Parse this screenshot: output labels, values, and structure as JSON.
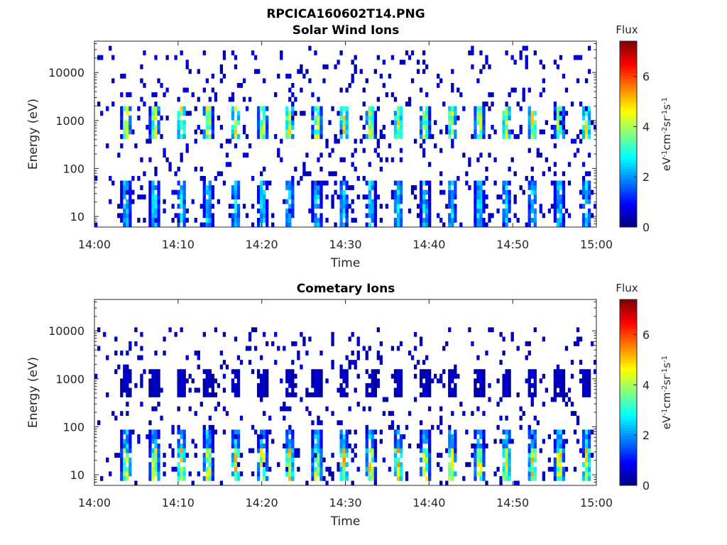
{
  "figure": {
    "title": "RPCICA160602T14.PNG"
  },
  "colorbar": {
    "label": "Flux",
    "unit_text": "eV",
    "unit_sup_1": "-1",
    "unit_mid": "cm",
    "unit_sup_2": "-2",
    "unit_sr": "sr",
    "unit_sup_3": "-1",
    "unit_s": "s",
    "unit_sup_4": "-1",
    "ticks": [
      "0",
      "2",
      "4",
      "6"
    ],
    "tick_values": [
      0,
      2,
      4,
      6
    ],
    "range": [
      0,
      7.4
    ],
    "colormap": "jet"
  },
  "chart_data": [
    {
      "type": "heatmap",
      "title": "Solar Wind Ions",
      "xlabel": "Time",
      "ylabel": "Energy (eV)",
      "x_ticks": [
        "14:00",
        "14:10",
        "14:20",
        "14:30",
        "14:40",
        "14:50",
        "15:00"
      ],
      "x_range_minutes": [
        0,
        60
      ],
      "y_scale": "log",
      "y_ticks": [
        "10",
        "100",
        "1000",
        "10000"
      ],
      "y_tick_values": [
        10,
        100,
        1000,
        10000
      ],
      "y_range": [
        6,
        45000
      ],
      "z_range": [
        0,
        7.4
      ],
      "peaks_minutes": [
        3.8,
        7.2,
        10.4,
        13.6,
        16.9,
        20.1,
        23.3,
        26.6,
        29.8,
        33.0,
        36.3,
        39.5,
        42.7,
        46.0,
        49.2,
        52.4,
        55.6,
        58.8
      ],
      "bands": [
        {
          "energy_min": 400,
          "energy_max": 2000,
          "peak_flux": 4.3
        },
        {
          "energy_min": 6,
          "energy_max": 50,
          "peak_flux": 2.6
        }
      ],
      "background_energy_max": 40000,
      "background_flux": 0.8
    },
    {
      "type": "heatmap",
      "title": "Cometary Ions",
      "xlabel": "Time",
      "ylabel": "Energy (eV)",
      "x_ticks": [
        "14:00",
        "14:10",
        "14:20",
        "14:30",
        "14:40",
        "14:50",
        "15:00"
      ],
      "x_range_minutes": [
        0,
        60
      ],
      "y_scale": "log",
      "y_ticks": [
        "10",
        "100",
        "1000",
        "10000"
      ],
      "y_tick_values": [
        10,
        100,
        1000,
        10000
      ],
      "y_range": [
        6,
        45000
      ],
      "z_range": [
        0,
        7.4
      ],
      "peaks_minutes": [
        3.8,
        7.2,
        10.4,
        13.6,
        16.9,
        20.1,
        23.3,
        26.6,
        29.8,
        33.0,
        36.3,
        39.5,
        42.7,
        46.0,
        49.2,
        52.4,
        55.6,
        58.8
      ],
      "bands": [
        {
          "energy_min": 400,
          "energy_max": 1500,
          "peak_flux": 0.6
        },
        {
          "energy_min": 8,
          "energy_max": 35,
          "peak_flux": 4.6
        },
        {
          "energy_min": 30,
          "energy_max": 90,
          "peak_flux": 2.5
        }
      ],
      "background_energy_max": 12000,
      "background_flux": 0.7
    }
  ]
}
